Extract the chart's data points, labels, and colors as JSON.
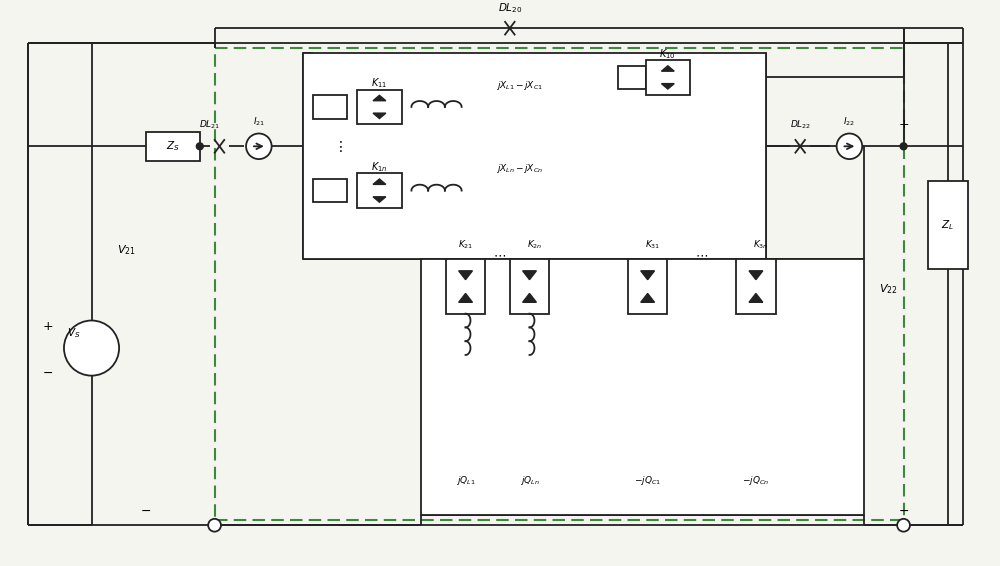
{
  "bg": "#f5f5f0",
  "lc": "#222222",
  "dc": "#3a8a3a",
  "lw": 1.3,
  "dlw": 1.5,
  "fig_w": 10.0,
  "fig_h": 5.66
}
